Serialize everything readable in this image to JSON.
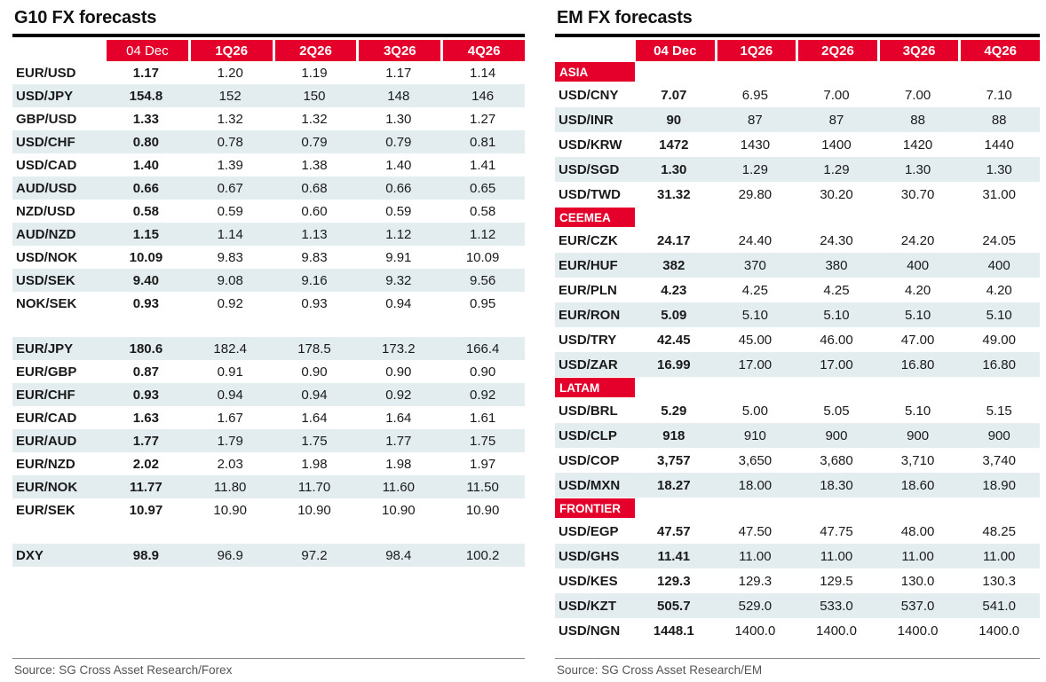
{
  "colors": {
    "accent_red": "#e4002b",
    "row_stripe": "#e3edf0",
    "title_rule": "#000000",
    "source_text": "#555555"
  },
  "g10": {
    "title": "G10 FX forecasts",
    "columns": [
      "04 Dec",
      "1Q26",
      "2Q26",
      "3Q26",
      "4Q26"
    ],
    "rows": [
      {
        "pair": "EUR/USD",
        "shaded": false,
        "values": [
          "1.17",
          "1.20",
          "1.19",
          "1.17",
          "1.14"
        ]
      },
      {
        "pair": "USD/JPY",
        "shaded": true,
        "values": [
          "154.8",
          "152",
          "150",
          "148",
          "146"
        ]
      },
      {
        "pair": "GBP/USD",
        "shaded": false,
        "values": [
          "1.33",
          "1.32",
          "1.32",
          "1.30",
          "1.27"
        ]
      },
      {
        "pair": "USD/CHF",
        "shaded": true,
        "values": [
          "0.80",
          "0.78",
          "0.79",
          "0.79",
          "0.81"
        ]
      },
      {
        "pair": "USD/CAD",
        "shaded": false,
        "values": [
          "1.40",
          "1.39",
          "1.38",
          "1.40",
          "1.41"
        ]
      },
      {
        "pair": "AUD/USD",
        "shaded": true,
        "values": [
          "0.66",
          "0.67",
          "0.68",
          "0.66",
          "0.65"
        ]
      },
      {
        "pair": "NZD/USD",
        "shaded": false,
        "values": [
          "0.58",
          "0.59",
          "0.60",
          "0.59",
          "0.58"
        ]
      },
      {
        "pair": "AUD/NZD",
        "shaded": true,
        "values": [
          "1.15",
          "1.14",
          "1.13",
          "1.12",
          "1.12"
        ]
      },
      {
        "pair": "USD/NOK",
        "shaded": false,
        "values": [
          "10.09",
          "9.83",
          "9.83",
          "9.91",
          "10.09"
        ]
      },
      {
        "pair": "USD/SEK",
        "shaded": true,
        "values": [
          "9.40",
          "9.08",
          "9.16",
          "9.32",
          "9.56"
        ]
      },
      {
        "pair": "NOK/SEK",
        "shaded": false,
        "values": [
          "0.93",
          "0.92",
          "0.93",
          "0.94",
          "0.95"
        ]
      },
      {
        "type": "spacer"
      },
      {
        "pair": "EUR/JPY",
        "shaded": true,
        "values": [
          "180.6",
          "182.4",
          "178.5",
          "173.2",
          "166.4"
        ]
      },
      {
        "pair": "EUR/GBP",
        "shaded": false,
        "values": [
          "0.87",
          "0.91",
          "0.90",
          "0.90",
          "0.90"
        ]
      },
      {
        "pair": "EUR/CHF",
        "shaded": true,
        "values": [
          "0.93",
          "0.94",
          "0.94",
          "0.92",
          "0.92"
        ]
      },
      {
        "pair": "EUR/CAD",
        "shaded": false,
        "values": [
          "1.63",
          "1.67",
          "1.64",
          "1.64",
          "1.61"
        ]
      },
      {
        "pair": "EUR/AUD",
        "shaded": true,
        "values": [
          "1.77",
          "1.79",
          "1.75",
          "1.77",
          "1.75"
        ]
      },
      {
        "pair": "EUR/NZD",
        "shaded": false,
        "values": [
          "2.02",
          "2.03",
          "1.98",
          "1.98",
          "1.97"
        ]
      },
      {
        "pair": "EUR/NOK",
        "shaded": true,
        "values": [
          "11.77",
          "11.80",
          "11.70",
          "11.60",
          "11.50"
        ]
      },
      {
        "pair": "EUR/SEK",
        "shaded": false,
        "values": [
          "10.97",
          "10.90",
          "10.90",
          "10.90",
          "10.90"
        ]
      },
      {
        "type": "spacer"
      },
      {
        "pair": "DXY",
        "shaded": true,
        "values": [
          "98.9",
          "96.9",
          "97.2",
          "98.4",
          "100.2"
        ]
      }
    ],
    "source": "Source: SG Cross Asset Research/Forex"
  },
  "em": {
    "title": "EM FX forecasts",
    "columns": [
      "04 Dec",
      "1Q26",
      "2Q26",
      "3Q26",
      "4Q26"
    ],
    "rows": [
      {
        "type": "section",
        "label": "ASIA"
      },
      {
        "pair": "USD/CNY",
        "shaded": false,
        "values": [
          "7.07",
          "6.95",
          "7.00",
          "7.00",
          "7.10"
        ]
      },
      {
        "pair": "USD/INR",
        "shaded": true,
        "values": [
          "90",
          "87",
          "87",
          "88",
          "88"
        ]
      },
      {
        "pair": "USD/KRW",
        "shaded": false,
        "values": [
          "1472",
          "1430",
          "1400",
          "1420",
          "1440"
        ]
      },
      {
        "pair": "USD/SGD",
        "shaded": true,
        "values": [
          "1.30",
          "1.29",
          "1.29",
          "1.30",
          "1.30"
        ]
      },
      {
        "pair": "USD/TWD",
        "shaded": false,
        "values": [
          "31.32",
          "29.80",
          "30.20",
          "30.70",
          "31.00"
        ]
      },
      {
        "type": "section",
        "label": "CEEMEA"
      },
      {
        "pair": "EUR/CZK",
        "shaded": false,
        "values": [
          "24.17",
          "24.40",
          "24.30",
          "24.20",
          "24.05"
        ]
      },
      {
        "pair": "EUR/HUF",
        "shaded": true,
        "values": [
          "382",
          "370",
          "380",
          "400",
          "400"
        ]
      },
      {
        "pair": "EUR/PLN",
        "shaded": false,
        "values": [
          "4.23",
          "4.25",
          "4.25",
          "4.20",
          "4.20"
        ]
      },
      {
        "pair": "EUR/RON",
        "shaded": true,
        "values": [
          "5.09",
          "5.10",
          "5.10",
          "5.10",
          "5.10"
        ]
      },
      {
        "pair": "USD/TRY",
        "shaded": false,
        "values": [
          "42.45",
          "45.00",
          "46.00",
          "47.00",
          "49.00"
        ]
      },
      {
        "pair": "USD/ZAR",
        "shaded": true,
        "values": [
          "16.99",
          "17.00",
          "17.00",
          "16.80",
          "16.80"
        ]
      },
      {
        "type": "section",
        "label": "LATAM"
      },
      {
        "pair": "USD/BRL",
        "shaded": false,
        "values": [
          "5.29",
          "5.00",
          "5.05",
          "5.10",
          "5.15"
        ]
      },
      {
        "pair": "USD/CLP",
        "shaded": true,
        "values": [
          "918",
          "910",
          "900",
          "900",
          "900"
        ]
      },
      {
        "pair": "USD/COP",
        "shaded": false,
        "values": [
          "3,757",
          "3,650",
          "3,680",
          "3,710",
          "3,740"
        ]
      },
      {
        "pair": "USD/MXN",
        "shaded": true,
        "values": [
          "18.27",
          "18.00",
          "18.30",
          "18.60",
          "18.90"
        ]
      },
      {
        "type": "section",
        "label": "FRONTIER"
      },
      {
        "pair": "USD/EGP",
        "shaded": false,
        "values": [
          "47.57",
          "47.50",
          "47.75",
          "48.00",
          "48.25"
        ]
      },
      {
        "pair": "USD/GHS",
        "shaded": true,
        "values": [
          "11.41",
          "11.00",
          "11.00",
          "11.00",
          "11.00"
        ]
      },
      {
        "pair": "USD/KES",
        "shaded": false,
        "values": [
          "129.3",
          "129.3",
          "129.5",
          "130.0",
          "130.3"
        ]
      },
      {
        "pair": "USD/KZT",
        "shaded": true,
        "values": [
          "505.7",
          "529.0",
          "533.0",
          "537.0",
          "541.0"
        ]
      },
      {
        "pair": "USD/NGN",
        "shaded": false,
        "values": [
          "1448.1",
          "1400.0",
          "1400.0",
          "1400.0",
          "1400.0"
        ]
      }
    ],
    "source": "Source: SG Cross Asset Research/EM"
  }
}
